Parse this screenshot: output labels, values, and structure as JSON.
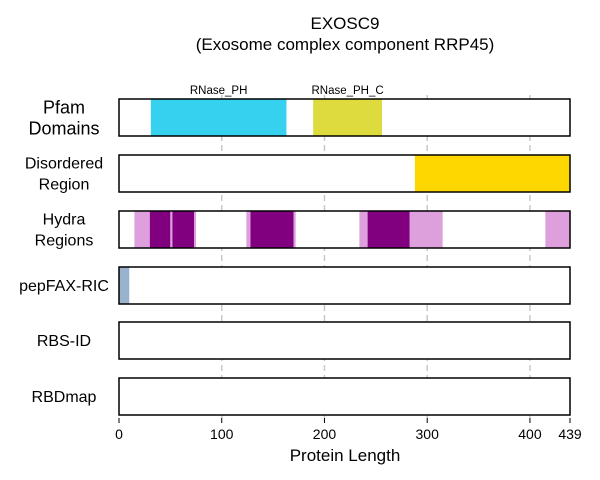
{
  "chart_data": {
    "type": "track",
    "title_line1": "EXOSC9",
    "title_line2": "(Exosome complex component RRP45)",
    "xlabel": "Protein Length",
    "xlim": [
      0,
      439
    ],
    "xticks": [
      0,
      100,
      200,
      300,
      400,
      439
    ],
    "grid_x": [
      100,
      200,
      300,
      400
    ],
    "grid": true,
    "tracks": [
      {
        "label_lines": [
          "Pfam",
          "Domains"
        ],
        "segments": [
          {
            "name": "RNase_PH",
            "start": 31,
            "end": 163,
            "color": "#36D1EF"
          },
          {
            "name": "RNase_PH_C",
            "start": 189,
            "end": 256,
            "color": "#DDDB3E"
          }
        ]
      },
      {
        "label_lines": [
          "Disordered",
          "Region"
        ],
        "segments": [
          {
            "start": 288,
            "end": 439,
            "color": "#FFD700"
          }
        ]
      },
      {
        "label_lines": [
          "Hydra",
          "Regions"
        ],
        "segments": [
          {
            "start": 15,
            "end": 30,
            "color": "#DDA0DD"
          },
          {
            "start": 30,
            "end": 50,
            "color": "#800080"
          },
          {
            "start": 50,
            "end": 52,
            "color": "#DDA0DD"
          },
          {
            "start": 52,
            "end": 73,
            "color": "#800080"
          },
          {
            "start": 73,
            "end": 75,
            "color": "#DDA0DD"
          },
          {
            "start": 124,
            "end": 128,
            "color": "#DDA0DD"
          },
          {
            "start": 128,
            "end": 170,
            "color": "#800080"
          },
          {
            "start": 170,
            "end": 172,
            "color": "#DDA0DD"
          },
          {
            "start": 234,
            "end": 242,
            "color": "#DDA0DD"
          },
          {
            "start": 242,
            "end": 283,
            "color": "#800080"
          },
          {
            "start": 283,
            "end": 315,
            "color": "#DDA0DD"
          },
          {
            "start": 415,
            "end": 439,
            "color": "#DDA0DD"
          }
        ]
      },
      {
        "label_lines": [
          "pepFAX-RIC"
        ],
        "segments": [
          {
            "start": 0,
            "end": 10,
            "color": "#9AB3CC"
          }
        ]
      },
      {
        "label_lines": [
          "RBS-ID"
        ],
        "segments": []
      },
      {
        "label_lines": [
          "RBDmap"
        ],
        "segments": []
      }
    ]
  }
}
